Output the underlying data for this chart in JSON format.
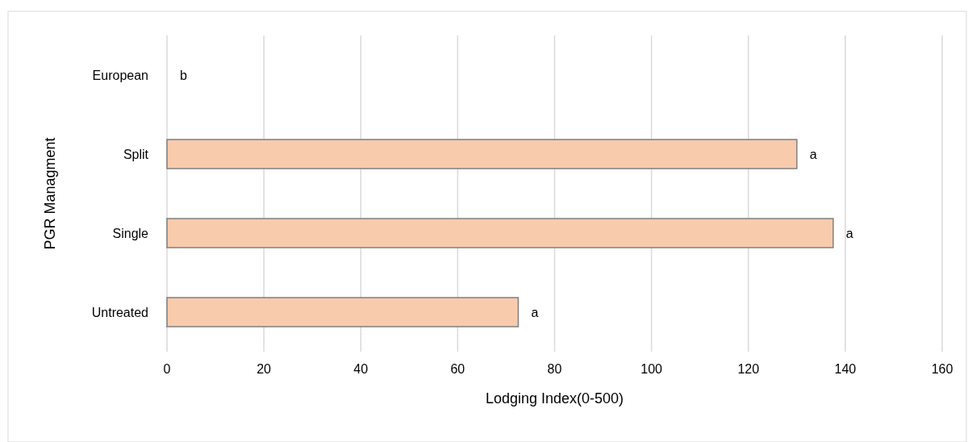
{
  "chart_data": {
    "type": "bar",
    "orientation": "horizontal",
    "xlabel": "Lodging Index(0-500)",
    "ylabel": "PGR Managment",
    "categories": [
      "European",
      "Split",
      "Single",
      "Untreated"
    ],
    "values": [
      0,
      130,
      137.5,
      72.5
    ],
    "color": "#f8cbad",
    "xlim": [
      0,
      160
    ],
    "xticks": [
      0,
      20,
      40,
      60,
      80,
      100,
      120,
      140,
      160
    ],
    "grid": "x",
    "annotations": [
      {
        "text": "b",
        "x": 0,
        "y": "European"
      },
      {
        "text": "a",
        "x": 130,
        "y": "Split"
      },
      {
        "text": "a",
        "x": 137.5,
        "y": "Single"
      },
      {
        "text": "a",
        "x": 72.5,
        "y": "Untreated"
      }
    ]
  }
}
